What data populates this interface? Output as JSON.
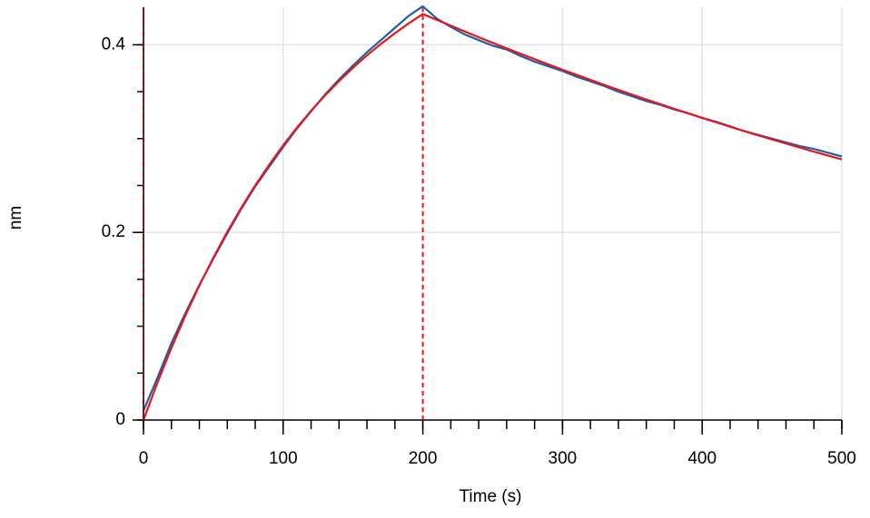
{
  "chart_data": {
    "type": "line",
    "x_label": "Time (s)",
    "y_label": "nm",
    "x": [
      0,
      10,
      20,
      30,
      40,
      50,
      60,
      70,
      80,
      90,
      100,
      110,
      120,
      130,
      140,
      150,
      160,
      170,
      180,
      190,
      200,
      210,
      220,
      230,
      240,
      250,
      260,
      270,
      280,
      290,
      300,
      310,
      320,
      330,
      340,
      350,
      360,
      370,
      380,
      390,
      400,
      410,
      420,
      430,
      440,
      450,
      460,
      470,
      480,
      490,
      500
    ],
    "series": [
      {
        "color": "#1f5fa8",
        "values": [
          0.01,
          0.045,
          0.082,
          0.114,
          0.144,
          0.172,
          0.199,
          0.225,
          0.249,
          0.27,
          0.291,
          0.311,
          0.329,
          0.347,
          0.363,
          0.378,
          0.392,
          0.405,
          0.418,
          0.431,
          0.441,
          0.428,
          0.419,
          0.411,
          0.405,
          0.399,
          0.395,
          0.388,
          0.382,
          0.377,
          0.372,
          0.366,
          0.361,
          0.356,
          0.35,
          0.345,
          0.34,
          0.336,
          0.331,
          0.327,
          0.322,
          0.318,
          0.313,
          0.308,
          0.304,
          0.3,
          0.296,
          0.292,
          0.289,
          0.285,
          0.281
        ]
      },
      {
        "color": "#e8151b",
        "values": [
          0,
          0.0399,
          0.0769,
          0.1114,
          0.1433,
          0.173,
          0.2006,
          0.2262,
          0.25,
          0.2721,
          0.2928,
          0.3119,
          0.3296,
          0.3461,
          0.3613,
          0.3755,
          0.3887,
          0.4009,
          0.4123,
          0.4229,
          0.4328,
          0.4266,
          0.4204,
          0.4142,
          0.4081,
          0.4021,
          0.3962,
          0.3904,
          0.3847,
          0.379,
          0.3734,
          0.368,
          0.3626,
          0.3572,
          0.352,
          0.3468,
          0.3417,
          0.3367,
          0.3317,
          0.3269,
          0.3221,
          0.3173,
          0.3127,
          0.3081,
          0.3035,
          0.2991,
          0.2947,
          0.2904,
          0.2861,
          0.2819,
          0.2778
        ]
      }
    ],
    "vlines": [
      {
        "value": 0,
        "color": "#8b0a0a"
      },
      {
        "value": 200,
        "color": "#e8151b"
      }
    ],
    "xlim": [
      0,
      500
    ],
    "ylim": [
      0,
      0.44
    ],
    "xticks": [
      0,
      100,
      200,
      300,
      400,
      500
    ],
    "yticks": [
      0,
      0.2,
      0.4
    ],
    "x_minor_step": 20,
    "y_minor_step": 0.05,
    "grid": true
  }
}
